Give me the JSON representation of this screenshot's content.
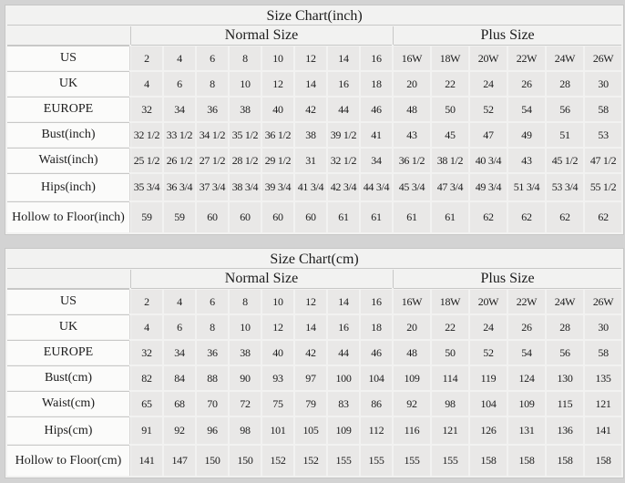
{
  "page": {
    "background": "#d3d3d3",
    "label_cell_color": "#fbfbfa",
    "data_cell_color": "#e9e8e7",
    "line_color": "#c8c8c7"
  },
  "tables": [
    {
      "title": "Size Chart(inch)",
      "normal_header": "Normal Size",
      "plus_header": "Plus Size",
      "rows": [
        {
          "label": "US",
          "normal": [
            "2",
            "4",
            "6",
            "8",
            "10",
            "12",
            "14",
            "16"
          ],
          "plus": [
            "16W",
            "18W",
            "20W",
            "22W",
            "24W",
            "26W"
          ]
        },
        {
          "label": "UK",
          "normal": [
            "4",
            "6",
            "8",
            "10",
            "12",
            "14",
            "16",
            "18"
          ],
          "plus": [
            "20",
            "22",
            "24",
            "26",
            "28",
            "30"
          ]
        },
        {
          "label": "EUROPE",
          "normal": [
            "32",
            "34",
            "36",
            "38",
            "40",
            "42",
            "44",
            "46"
          ],
          "plus": [
            "48",
            "50",
            "52",
            "54",
            "56",
            "58"
          ]
        },
        {
          "label": "Bust(inch)",
          "normal": [
            "32 1/2",
            "33 1/2",
            "34 1/2",
            "35 1/2",
            "36 1/2",
            "38",
            "39 1/2",
            "41"
          ],
          "plus": [
            "43",
            "45",
            "47",
            "49",
            "51",
            "53"
          ]
        },
        {
          "label": "Waist(inch)",
          "normal": [
            "25 1/2",
            "26 1/2",
            "27 1/2",
            "28 1/2",
            "29 1/2",
            "31",
            "32 1/2",
            "34"
          ],
          "plus": [
            "36 1/2",
            "38 1/2",
            "40 3/4",
            "43",
            "45 1/2",
            "47 1/2"
          ]
        },
        {
          "label": "Hips(inch)",
          "normal": [
            "35 3/4",
            "36 3/4",
            "37 3/4",
            "38 3/4",
            "39 3/4",
            "41 3/4",
            "42 3/4",
            "44 3/4"
          ],
          "plus": [
            "45 3/4",
            "47 3/4",
            "49 3/4",
            "51 3/4",
            "53 3/4",
            "55 1/2"
          ]
        },
        {
          "label": "Hollow to Floor(inch)",
          "normal": [
            "59",
            "59",
            "60",
            "60",
            "60",
            "60",
            "61",
            "61"
          ],
          "plus": [
            "61",
            "61",
            "62",
            "62",
            "62",
            "62"
          ]
        }
      ]
    },
    {
      "title": "Size Chart(cm)",
      "normal_header": "Normal Size",
      "plus_header": "Plus Size",
      "rows": [
        {
          "label": "US",
          "normal": [
            "2",
            "4",
            "6",
            "8",
            "10",
            "12",
            "14",
            "16"
          ],
          "plus": [
            "16W",
            "18W",
            "20W",
            "22W",
            "24W",
            "26W"
          ]
        },
        {
          "label": "UK",
          "normal": [
            "4",
            "6",
            "8",
            "10",
            "12",
            "14",
            "16",
            "18"
          ],
          "plus": [
            "20",
            "22",
            "24",
            "26",
            "28",
            "30"
          ]
        },
        {
          "label": "EUROPE",
          "normal": [
            "32",
            "34",
            "36",
            "38",
            "40",
            "42",
            "44",
            "46"
          ],
          "plus": [
            "48",
            "50",
            "52",
            "54",
            "56",
            "58"
          ]
        },
        {
          "label": "Bust(cm)",
          "normal": [
            "82",
            "84",
            "88",
            "90",
            "93",
            "97",
            "100",
            "104"
          ],
          "plus": [
            "109",
            "114",
            "119",
            "124",
            "130",
            "135"
          ]
        },
        {
          "label": "Waist(cm)",
          "normal": [
            "65",
            "68",
            "70",
            "72",
            "75",
            "79",
            "83",
            "86"
          ],
          "plus": [
            "92",
            "98",
            "104",
            "109",
            "115",
            "121"
          ]
        },
        {
          "label": "Hips(cm)",
          "normal": [
            "91",
            "92",
            "96",
            "98",
            "101",
            "105",
            "109",
            "112"
          ],
          "plus": [
            "116",
            "121",
            "126",
            "131",
            "136",
            "141"
          ]
        },
        {
          "label": "Hollow to Floor(cm)",
          "normal": [
            "141",
            "147",
            "150",
            "150",
            "152",
            "152",
            "155",
            "155"
          ],
          "plus": [
            "155",
            "155",
            "158",
            "158",
            "158",
            "158"
          ]
        }
      ]
    }
  ]
}
